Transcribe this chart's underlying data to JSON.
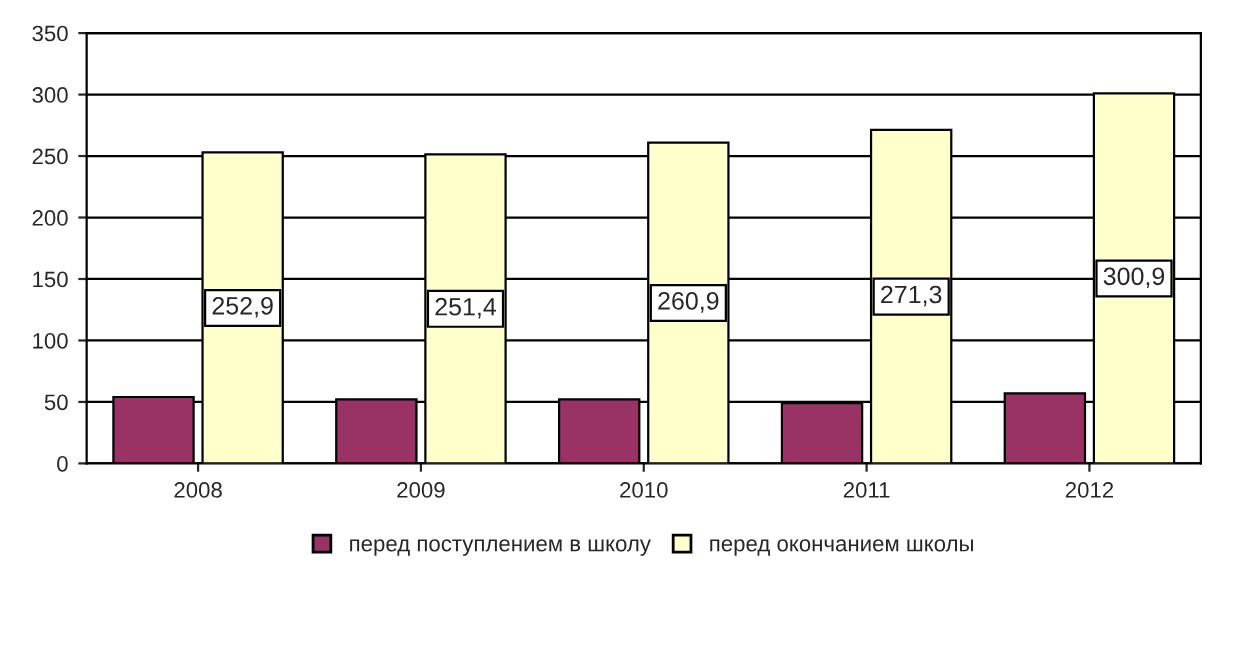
{
  "chart_data": {
    "type": "bar",
    "categories": [
      "2008",
      "2009",
      "2010",
      "2011",
      "2012"
    ],
    "series": [
      {
        "name": "перед поступлением в школу",
        "color": "#993366",
        "values": [
          54,
          52,
          52,
          49,
          57
        ]
      },
      {
        "name": "перед окончанием школы",
        "color": "#ffffcc",
        "values": [
          252.9,
          251.4,
          260.9,
          271.3,
          300.9
        ],
        "value_labels": [
          "252,9",
          "251,4",
          "260,9",
          "271,3",
          "300,9"
        ]
      }
    ],
    "ylim": [
      0,
      350
    ],
    "yticks": [
      0,
      50,
      100,
      150,
      200,
      250,
      300,
      350
    ],
    "grid": "y",
    "legend": "bottom"
  }
}
